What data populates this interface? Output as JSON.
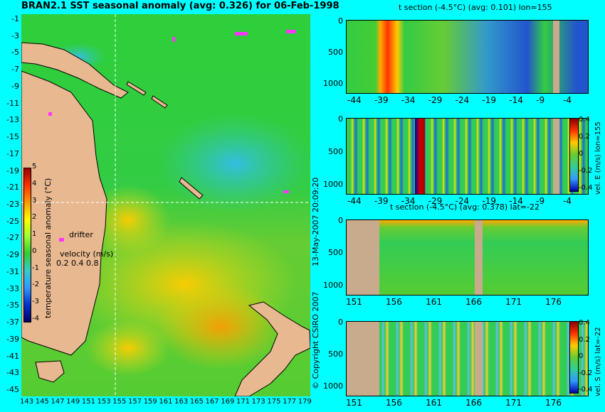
{
  "map": {
    "title": "BRAN2.1 SST seasonal anomaly (avg: 0.326) for 06-Feb-1998",
    "lat_ticks": [
      "-1",
      "-3",
      "-5",
      "-7",
      "-9",
      "-11",
      "-13",
      "-15",
      "-17",
      "-19",
      "-21",
      "-23",
      "-25",
      "-27",
      "-29",
      "-31",
      "-33",
      "-35",
      "-37",
      "-39",
      "-41",
      "-43",
      "-45"
    ],
    "lon_ticks": [
      "143",
      "145",
      "147",
      "149",
      "151",
      "153",
      "155",
      "157",
      "159",
      "161",
      "163",
      "165",
      "167",
      "169",
      "171",
      "173",
      "175",
      "177",
      "179"
    ],
    "colorbar_ticks": [
      "5",
      "4",
      "3",
      "2",
      "1",
      "0",
      "-1",
      "-2",
      "-3",
      "-4"
    ],
    "colorbar_label": "temperature seasonal anomaly (°C)",
    "drifter_label": "drifter",
    "velocity_label": "velocity (m/s)",
    "velocity_ticks": "0.2 0.4 0.8",
    "crosshair": {
      "lon": 155,
      "lat": -22
    },
    "colors": {
      "land": "#e8b890",
      "ocean_base": "#33cc33",
      "warm": "#ffcc00",
      "cool": "#33aaff",
      "drifter": "#ff33ff"
    }
  },
  "sections": [
    {
      "title": "t section (-4.5°C) (avg: 0.101) lon=155",
      "x_ticks": [
        "-44",
        "-39",
        "-34",
        "-29",
        "-24",
        "-19",
        "-14",
        "-9",
        "-4"
      ],
      "y_ticks": [
        "0",
        "500",
        "1000"
      ],
      "colorbar": null
    },
    {
      "title": "",
      "x_ticks": [
        "-44",
        "-39",
        "-34",
        "-29",
        "-24",
        "-19",
        "-14",
        "-9",
        "-4"
      ],
      "y_ticks": [
        "0",
        "500",
        "1000"
      ],
      "colorbar": {
        "label": "vel. E (m/s) lon=155",
        "ticks": [
          "0.4",
          "0.2",
          "0",
          "-0.2",
          "-0.4"
        ]
      }
    },
    {
      "title": "t section (-4.5°C) (avg: 0.378) lat=-22",
      "x_ticks": [
        "151",
        "156",
        "161",
        "166",
        "171",
        "176"
      ],
      "y_ticks": [
        "0",
        "500",
        "1000"
      ],
      "colorbar": null
    },
    {
      "title": "",
      "x_ticks": [
        "151",
        "156",
        "161",
        "166",
        "171",
        "176"
      ],
      "y_ticks": [
        "0",
        "500",
        "1000"
      ],
      "colorbar": {
        "label": "vel. S (m/s) lat=-22",
        "ticks": [
          "0.4",
          "0.2",
          "0",
          "-0.2",
          "-0.4"
        ]
      }
    }
  ],
  "side_text": {
    "date": "13-May-2007 20:09:20",
    "copyright": "© Copyright CSIRO 2007"
  },
  "chart_data": [
    {
      "type": "heatmap",
      "title": "BRAN2.1 SST seasonal anomaly (avg: 0.326) for 06-Feb-1998",
      "xlim": [
        143,
        180
      ],
      "ylim": [
        -45,
        0
      ],
      "clim": [
        -4,
        5
      ],
      "colorbar_label": "temperature seasonal anomaly (°C)"
    },
    {
      "type": "heatmap",
      "title": "t section (-4.5°C) (avg: 0.101) lon=155",
      "xlim": [
        -45,
        0
      ],
      "ylim": [
        1000,
        0
      ]
    },
    {
      "type": "heatmap",
      "title": "",
      "xlim": [
        -45,
        0
      ],
      "ylim": [
        1000,
        0
      ],
      "clim": [
        -0.4,
        0.4
      ],
      "colorbar_label": "vel. E (m/s) lon=155"
    },
    {
      "type": "heatmap",
      "title": "t section (-4.5°C) (avg: 0.378) lat=-22",
      "xlim": [
        150,
        180
      ],
      "ylim": [
        1000,
        0
      ]
    },
    {
      "type": "heatmap",
      "title": "",
      "xlim": [
        150,
        180
      ],
      "ylim": [
        1000,
        0
      ],
      "clim": [
        -0.4,
        0.4
      ],
      "colorbar_label": "vel. S (m/s) lat=-22"
    }
  ]
}
